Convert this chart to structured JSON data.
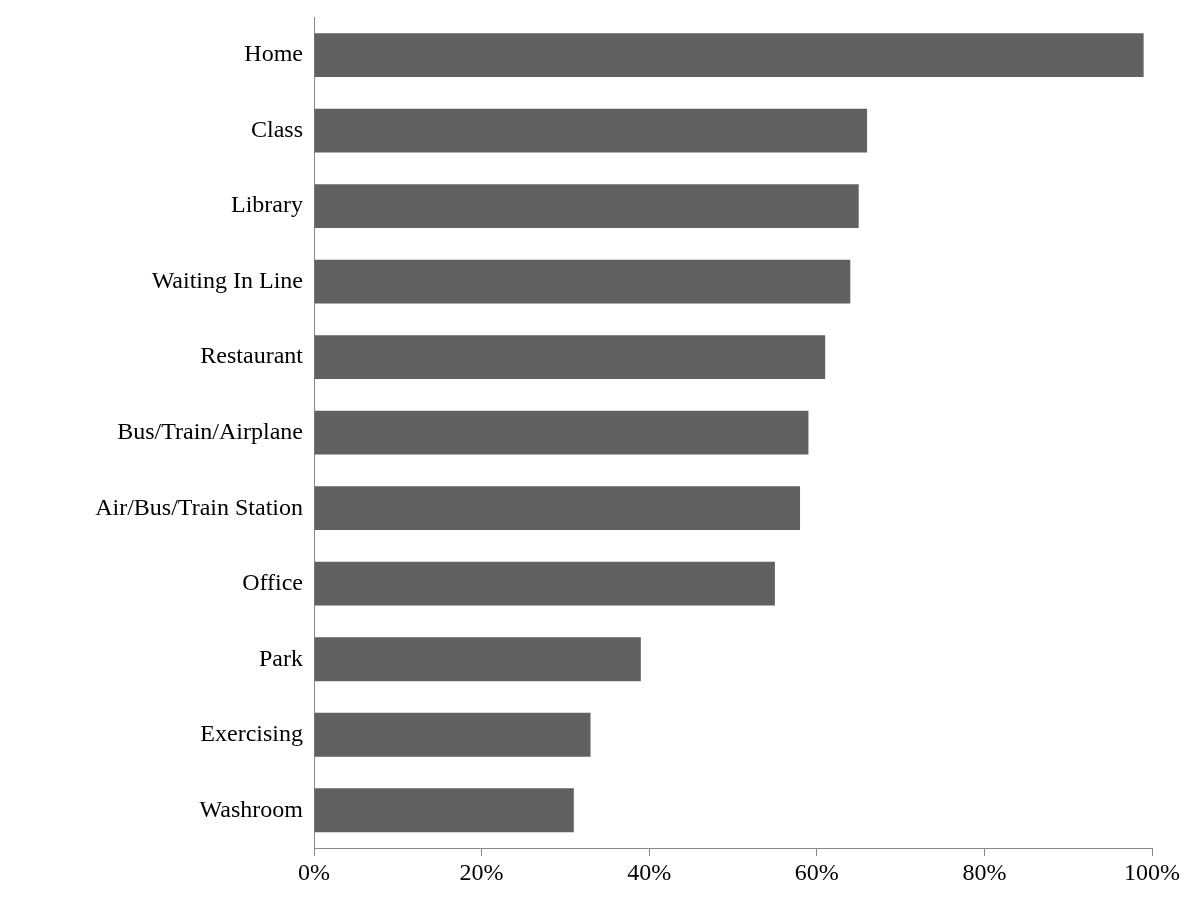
{
  "chart_data": {
    "type": "bar",
    "orientation": "horizontal",
    "categories": [
      "Home",
      "Class",
      "Library",
      "Waiting In Line",
      "Restaurant",
      "Bus/Train/Airplane",
      "Air/Bus/Train Station",
      "Office",
      "Park",
      "Exercising",
      "Washroom"
    ],
    "values": [
      99,
      66,
      65,
      64,
      61,
      59,
      58,
      55,
      39,
      33,
      31
    ],
    "color": "#616161",
    "xlim": [
      0,
      100
    ],
    "xticks": [
      {
        "value": 0,
        "label": "0%"
      },
      {
        "value": 20,
        "label": "20%"
      },
      {
        "value": 40,
        "label": "40%"
      },
      {
        "value": 60,
        "label": "60%"
      },
      {
        "value": 80,
        "label": "80%"
      },
      {
        "value": 100,
        "label": "100%"
      }
    ],
    "grid": false,
    "legend": false
  }
}
